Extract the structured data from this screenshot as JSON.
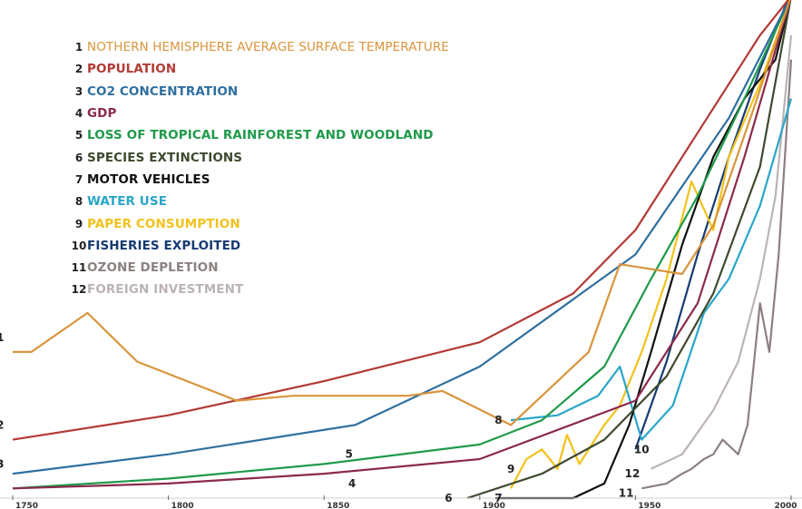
{
  "chart_data": {
    "type": "line",
    "title": "",
    "xlabel": "",
    "ylabel": "",
    "xlim": [
      1750,
      2000
    ],
    "x_ticks": [
      {
        "value": 1750,
        "label": "1750"
      },
      {
        "value": 1800,
        "label": "1800"
      },
      {
        "value": 1850,
        "label": "1850"
      },
      {
        "value": 1900,
        "label": "1900"
      },
      {
        "value": 1950,
        "label": "1950"
      },
      {
        "value": 2000,
        "label": "2000"
      }
    ],
    "y_scale": "relative (no axis labels)",
    "grid": false,
    "legend_position": "top-left",
    "series": [
      {
        "number": "1",
        "name": "NOTHERN HEMISPHERE AVERAGE SURFACE TEMPERATURE",
        "color": "#d9953c",
        "points": [
          [
            1750,
            0.3
          ],
          [
            1756,
            0.3
          ],
          [
            1774,
            0.38
          ],
          [
            1790,
            0.28
          ],
          [
            1822,
            0.2
          ],
          [
            1840,
            0.21
          ],
          [
            1877,
            0.21
          ],
          [
            1888,
            0.22
          ],
          [
            1910,
            0.15
          ],
          [
            1935,
            0.3
          ],
          [
            1945,
            0.48
          ],
          [
            1965,
            0.46
          ],
          [
            1975,
            0.56
          ],
          [
            1988,
            0.8
          ],
          [
            2000,
            1.03
          ]
        ]
      },
      {
        "number": "2",
        "name": "POPULATION",
        "color": "#b23a35",
        "points": [
          [
            1750,
            0.12
          ],
          [
            1800,
            0.17
          ],
          [
            1850,
            0.24
          ],
          [
            1900,
            0.32
          ],
          [
            1930,
            0.42
          ],
          [
            1950,
            0.55
          ],
          [
            1970,
            0.75
          ],
          [
            1990,
            0.95
          ],
          [
            2000,
            1.03
          ]
        ]
      },
      {
        "number": "3",
        "name": "CO2 CONCENTRATION",
        "color": "#2f6f9f",
        "points": [
          [
            1750,
            0.05
          ],
          [
            1800,
            0.09
          ],
          [
            1860,
            0.15
          ],
          [
            1900,
            0.27
          ],
          [
            1950,
            0.5
          ],
          [
            1980,
            0.78
          ],
          [
            2000,
            1.03
          ]
        ]
      },
      {
        "number": "4",
        "name": "GDP",
        "color": "#8b2a4a",
        "points": [
          [
            1750,
            0.02
          ],
          [
            1800,
            0.03
          ],
          [
            1850,
            0.05
          ],
          [
            1900,
            0.08
          ],
          [
            1950,
            0.2
          ],
          [
            1970,
            0.4
          ],
          [
            1985,
            0.7
          ],
          [
            2000,
            1.03
          ]
        ]
      },
      {
        "number": "5",
        "name": "LOSS OF TROPICAL RAINFOREST AND WOODLAND",
        "color": "#1f9a4a",
        "points": [
          [
            1750,
            0.02
          ],
          [
            1800,
            0.04
          ],
          [
            1850,
            0.07
          ],
          [
            1900,
            0.11
          ],
          [
            1920,
            0.16
          ],
          [
            1940,
            0.27
          ],
          [
            1955,
            0.45
          ],
          [
            1970,
            0.62
          ],
          [
            1985,
            0.82
          ],
          [
            2000,
            1.03
          ]
        ]
      },
      {
        "number": "6",
        "name": "SPECIES EXTINCTIONS",
        "color": "#3e4a2f",
        "points": [
          [
            1896,
            0.0
          ],
          [
            1920,
            0.05
          ],
          [
            1940,
            0.12
          ],
          [
            1960,
            0.25
          ],
          [
            1975,
            0.42
          ],
          [
            1990,
            0.68
          ],
          [
            2000,
            1.03
          ]
        ]
      },
      {
        "number": "7",
        "name": "MOTOR VEHICLES",
        "color": "#111111",
        "points": [
          [
            1905,
            0.0
          ],
          [
            1930,
            0.0
          ],
          [
            1940,
            0.03
          ],
          [
            1948,
            0.15
          ],
          [
            1955,
            0.3
          ],
          [
            1965,
            0.52
          ],
          [
            1975,
            0.7
          ],
          [
            1985,
            0.82
          ],
          [
            1995,
            0.9
          ],
          [
            2000,
            1.03
          ]
        ]
      },
      {
        "number": "8",
        "name": "WATER USE",
        "color": "#2aa6c8",
        "points": [
          [
            1910,
            0.16
          ],
          [
            1925,
            0.17
          ],
          [
            1938,
            0.21
          ],
          [
            1945,
            0.27
          ],
          [
            1952,
            0.12
          ],
          [
            1962,
            0.19
          ],
          [
            1972,
            0.38
          ],
          [
            1980,
            0.45
          ],
          [
            1990,
            0.6
          ],
          [
            2000,
            0.82
          ]
        ]
      },
      {
        "number": "9",
        "name": "PAPER CONSUMPTION",
        "color": "#f2c21c",
        "points": [
          [
            1910,
            0.02
          ],
          [
            1915,
            0.08
          ],
          [
            1920,
            0.1
          ],
          [
            1925,
            0.06
          ],
          [
            1928,
            0.13
          ],
          [
            1932,
            0.07
          ],
          [
            1940,
            0.15
          ],
          [
            1945,
            0.19
          ],
          [
            1952,
            0.3
          ],
          [
            1960,
            0.45
          ],
          [
            1968,
            0.65
          ],
          [
            1975,
            0.55
          ],
          [
            1980,
            0.7
          ],
          [
            1990,
            0.85
          ],
          [
            2000,
            1.03
          ]
        ]
      },
      {
        "number": "10",
        "name": "FISHERIES EXPLOITED",
        "color": "#163a72",
        "points": [
          [
            1950,
            0.1
          ],
          [
            1960,
            0.28
          ],
          [
            1970,
            0.5
          ],
          [
            1980,
            0.7
          ],
          [
            1990,
            0.88
          ],
          [
            2000,
            1.04
          ]
        ]
      },
      {
        "number": "11",
        "name": "OZONE DEPLETION",
        "color": "#8c8080",
        "points": [
          [
            1952,
            0.02
          ],
          [
            1960,
            0.03
          ],
          [
            1965,
            0.05
          ],
          [
            1968,
            0.06
          ],
          [
            1972,
            0.08
          ],
          [
            1975,
            0.09
          ],
          [
            1978,
            0.12
          ],
          [
            1983,
            0.09
          ],
          [
            1986,
            0.15
          ],
          [
            1990,
            0.4
          ],
          [
            1993,
            0.3
          ],
          [
            1996,
            0.5
          ],
          [
            2000,
            0.9
          ]
        ]
      },
      {
        "number": "12",
        "name": "FOREIGN INVESTMENT",
        "color": "#bcb4b4",
        "points": [
          [
            1955,
            0.06
          ],
          [
            1965,
            0.09
          ],
          [
            1975,
            0.18
          ],
          [
            1983,
            0.28
          ],
          [
            1990,
            0.45
          ],
          [
            1995,
            0.62
          ],
          [
            2000,
            0.95
          ]
        ]
      }
    ],
    "line_labels": [
      {
        "series": "1",
        "label": "1",
        "x": 1746,
        "y": 0.33
      },
      {
        "series": "2",
        "label": "2",
        "x": 1746,
        "y": 0.15
      },
      {
        "series": "3",
        "label": "3",
        "x": 1746,
        "y": 0.07
      },
      {
        "series": "4",
        "label": "4",
        "x": 1859,
        "y": 0.03
      },
      {
        "series": "5",
        "label": "5",
        "x": 1858,
        "y": 0.09
      },
      {
        "series": "6",
        "label": "6",
        "x": 1890,
        "y": 0.0
      },
      {
        "series": "7",
        "label": "7",
        "x": 1906,
        "y": 0.0
      },
      {
        "series": "8",
        "label": "8",
        "x": 1906,
        "y": 0.16
      },
      {
        "series": "9",
        "label": "9",
        "x": 1910,
        "y": 0.06
      },
      {
        "series": "10",
        "label": "10",
        "x": 1952,
        "y": 0.1
      },
      {
        "series": "11",
        "label": "11",
        "x": 1947,
        "y": 0.01
      },
      {
        "series": "12",
        "label": "12",
        "x": 1949,
        "y": 0.05
      }
    ]
  }
}
